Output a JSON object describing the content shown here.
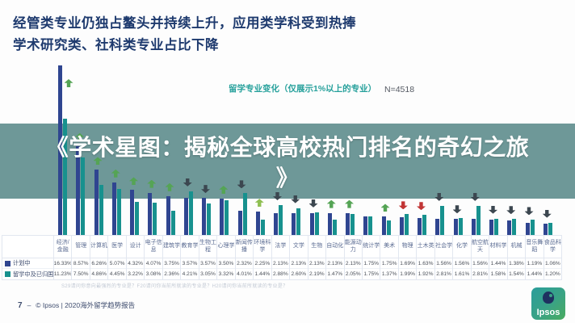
{
  "headline": {
    "line1": "经管类专业仍独占鳌头并持续上升，应用类学科受到热捧",
    "line2": "学术研究类、社科类专业占比下降"
  },
  "overlay": {
    "line1": "《学术星图：揭秘全球高校热门排名的奇幻之旅",
    "line2": "》"
  },
  "chart_data": {
    "type": "bar",
    "title": "留学专业变化（仅展示1%以上的专业）",
    "sample_label": "N=4518",
    "unit": "%",
    "ylim": [
      0,
      17
    ],
    "grid": false,
    "legend_position": "table-left",
    "categories": [
      "经济/金融",
      "管理",
      "计算机",
      "医学",
      "设计",
      "电子信息",
      "建筑学",
      "教育学",
      "生物工程",
      "心理学",
      "新闻传播",
      "环境科学",
      "法学",
      "文学",
      "生物",
      "自动化",
      "能源动力",
      "统计学",
      "美术",
      "物理",
      "土木类",
      "社会学",
      "化学",
      "航空航天",
      "材料学",
      "机械",
      "音乐舞蹈",
      "食品科学"
    ],
    "series": [
      {
        "name": "计划中",
        "color": "#2f4590",
        "values": [
          16.33,
          8.57,
          6.26,
          5.07,
          4.32,
          4.07,
          3.75,
          3.57,
          3.57,
          3.5,
          2.32,
          2.25,
          2.13,
          2.13,
          2.13,
          2.13,
          2.13,
          1.75,
          1.75,
          1.69,
          1.63,
          1.56,
          1.56,
          1.56,
          1.44,
          1.38,
          1.19,
          1.06
        ]
      },
      {
        "name": "留学中及已归国",
        "color": "#17918e",
        "values": [
          11.23,
          7.5,
          4.86,
          4.45,
          3.22,
          3.08,
          2.36,
          4.21,
          3.05,
          3.32,
          4.01,
          1.44,
          2.88,
          2.6,
          2.19,
          1.47,
          2.05,
          1.75,
          1.37,
          1.99,
          1.92,
          2.81,
          1.61,
          2.81,
          1.58,
          1.54,
          1.44,
          1.2
        ]
      }
    ],
    "trend_arrows": [
      "up",
      "up",
      "up",
      "up",
      "up",
      "up",
      "up",
      "down",
      "down",
      "up",
      "down",
      "up-light",
      "down",
      "down",
      "down",
      "up",
      "up",
      "none",
      "up",
      "down-red",
      "down-red",
      "down",
      "down",
      "down",
      "down",
      "down",
      "down",
      "down"
    ]
  },
  "arrow_colors": {
    "up": "#55a455",
    "up-light": "#8fbf52",
    "down": "#3c4750",
    "down-red": "#c13535"
  },
  "footnote": "S29请问你意向最强烈的专业是？F20请问你当前所就读的专业是？H20请问你当前所就读的专业是？",
  "footer": {
    "page": "7",
    "separator": "–",
    "text": "© Ipsos | 2020海外留学趋势报告"
  },
  "logo": {
    "text": "Ipsos"
  }
}
